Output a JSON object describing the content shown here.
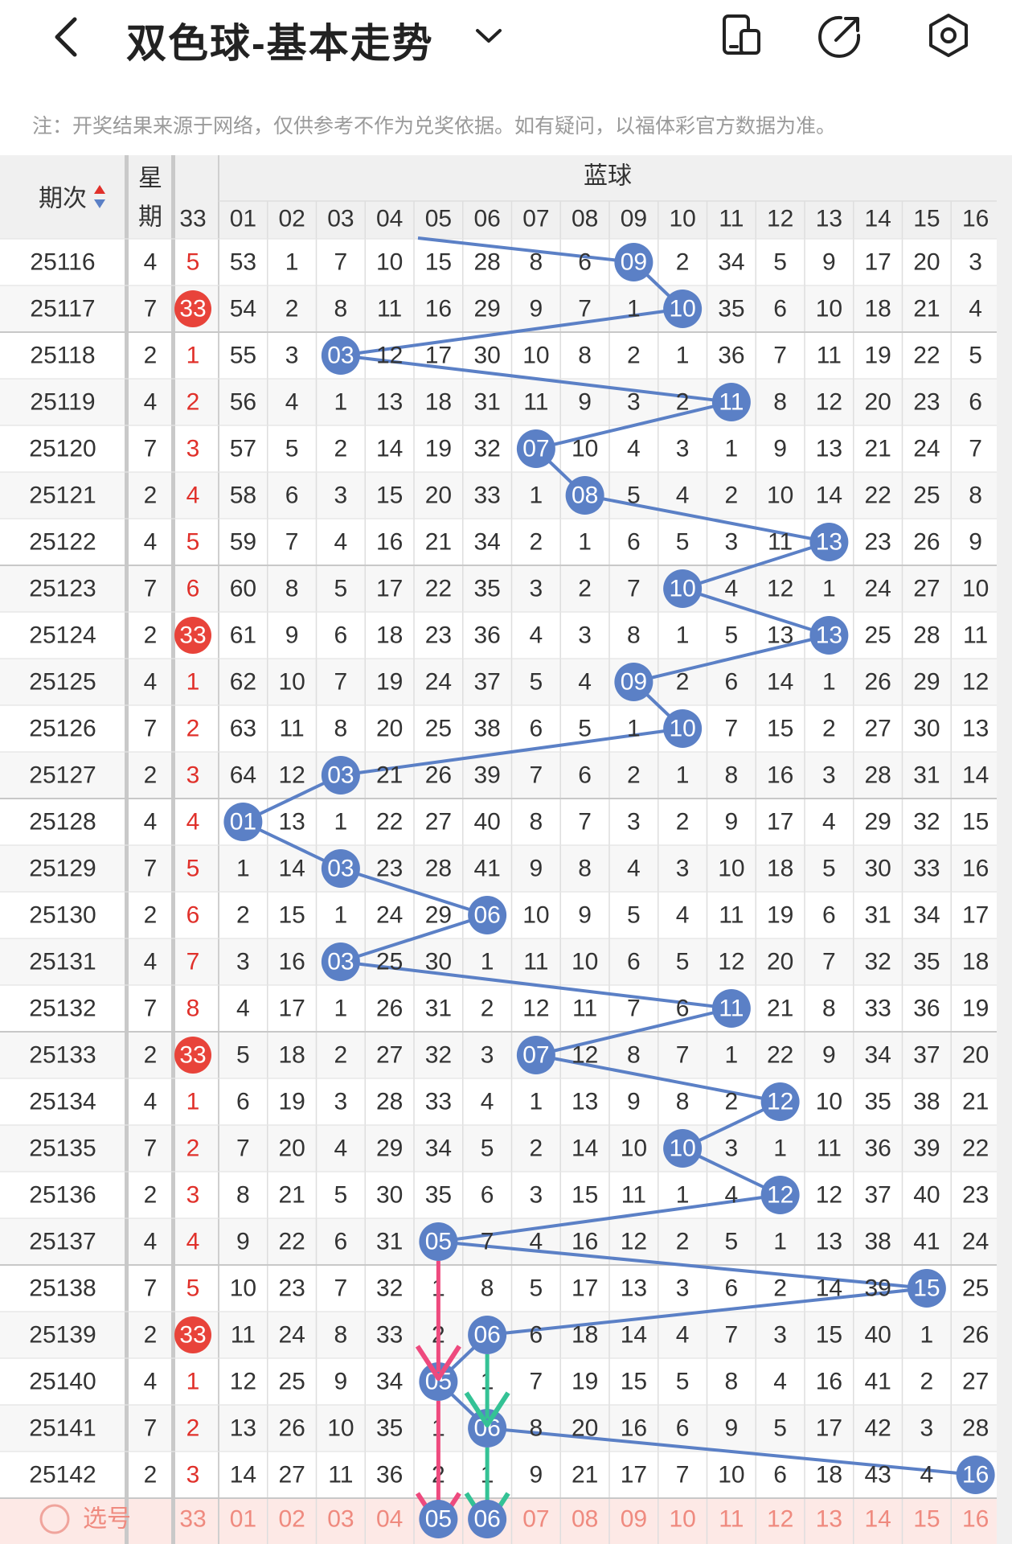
{
  "header": {
    "title": "双色球-基本走势",
    "back_icon": "back-arrow-icon",
    "dropdown_icon": "chevron-down-icon",
    "actions": [
      "device-toggle-icon",
      "share-icon",
      "settings-icon"
    ]
  },
  "note": "注：开奖结果来源于网络，仅供参考不作为兑奖依据。如有疑问，以福体彩官方数据为准。",
  "table": {
    "col_issue": "期次",
    "col_week": "星期",
    "col_red_last": "33",
    "blue_title": "蓝球",
    "blue_headers": [
      "01",
      "02",
      "03",
      "04",
      "05",
      "06",
      "07",
      "08",
      "09",
      "10",
      "11",
      "12",
      "13",
      "14",
      "15",
      "16"
    ],
    "rows": [
      {
        "issue": "25116",
        "week": "4",
        "red": "5",
        "red_hit": false,
        "blue": "09",
        "miss": [
          "53",
          "1",
          "7",
          "10",
          "15",
          "28",
          "8",
          "6",
          "",
          "2",
          "34",
          "5",
          "9",
          "17",
          "20",
          "3"
        ]
      },
      {
        "issue": "25117",
        "week": "7",
        "red": "33",
        "red_hit": true,
        "blue": "10",
        "miss": [
          "54",
          "2",
          "8",
          "11",
          "16",
          "29",
          "9",
          "7",
          "1",
          "",
          "35",
          "6",
          "10",
          "18",
          "21",
          "4"
        ]
      },
      {
        "issue": "25118",
        "week": "2",
        "red": "1",
        "red_hit": false,
        "blue": "03",
        "miss": [
          "55",
          "3",
          "",
          "12",
          "17",
          "30",
          "10",
          "8",
          "2",
          "1",
          "36",
          "7",
          "11",
          "19",
          "22",
          "5"
        ]
      },
      {
        "issue": "25119",
        "week": "4",
        "red": "2",
        "red_hit": false,
        "blue": "11",
        "miss": [
          "56",
          "4",
          "1",
          "13",
          "18",
          "31",
          "11",
          "9",
          "3",
          "2",
          "",
          "8",
          "12",
          "20",
          "23",
          "6"
        ]
      },
      {
        "issue": "25120",
        "week": "7",
        "red": "3",
        "red_hit": false,
        "blue": "07",
        "miss": [
          "57",
          "5",
          "2",
          "14",
          "19",
          "32",
          "",
          "10",
          "4",
          "3",
          "1",
          "9",
          "13",
          "21",
          "24",
          "7"
        ]
      },
      {
        "issue": "25121",
        "week": "2",
        "red": "4",
        "red_hit": false,
        "blue": "08",
        "miss": [
          "58",
          "6",
          "3",
          "15",
          "20",
          "33",
          "1",
          "",
          "5",
          "4",
          "2",
          "10",
          "14",
          "22",
          "25",
          "8"
        ]
      },
      {
        "issue": "25122",
        "week": "4",
        "red": "5",
        "red_hit": false,
        "blue": "13",
        "miss": [
          "59",
          "7",
          "4",
          "16",
          "21",
          "34",
          "2",
          "1",
          "6",
          "5",
          "3",
          "11",
          "",
          "23",
          "26",
          "9"
        ]
      },
      {
        "issue": "25123",
        "week": "7",
        "red": "6",
        "red_hit": false,
        "blue": "10",
        "miss": [
          "60",
          "8",
          "5",
          "17",
          "22",
          "35",
          "3",
          "2",
          "7",
          "",
          "4",
          "12",
          "1",
          "24",
          "27",
          "10"
        ]
      },
      {
        "issue": "25124",
        "week": "2",
        "red": "33",
        "red_hit": true,
        "blue": "13",
        "miss": [
          "61",
          "9",
          "6",
          "18",
          "23",
          "36",
          "4",
          "3",
          "8",
          "1",
          "5",
          "13",
          "",
          "25",
          "28",
          "11"
        ]
      },
      {
        "issue": "25125",
        "week": "4",
        "red": "1",
        "red_hit": false,
        "blue": "09",
        "miss": [
          "62",
          "10",
          "7",
          "19",
          "24",
          "37",
          "5",
          "4",
          "",
          "2",
          "6",
          "14",
          "1",
          "26",
          "29",
          "12"
        ]
      },
      {
        "issue": "25126",
        "week": "7",
        "red": "2",
        "red_hit": false,
        "blue": "10",
        "miss": [
          "63",
          "11",
          "8",
          "20",
          "25",
          "38",
          "6",
          "5",
          "1",
          "",
          "7",
          "15",
          "2",
          "27",
          "30",
          "13"
        ]
      },
      {
        "issue": "25127",
        "week": "2",
        "red": "3",
        "red_hit": false,
        "blue": "03",
        "miss": [
          "64",
          "12",
          "",
          "21",
          "26",
          "39",
          "7",
          "6",
          "2",
          "1",
          "8",
          "16",
          "3",
          "28",
          "31",
          "14"
        ]
      },
      {
        "issue": "25128",
        "week": "4",
        "red": "4",
        "red_hit": false,
        "blue": "01",
        "miss": [
          "",
          "13",
          "1",
          "22",
          "27",
          "40",
          "8",
          "7",
          "3",
          "2",
          "9",
          "17",
          "4",
          "29",
          "32",
          "15"
        ]
      },
      {
        "issue": "25129",
        "week": "7",
        "red": "5",
        "red_hit": false,
        "blue": "03",
        "miss": [
          "1",
          "14",
          "",
          "23",
          "28",
          "41",
          "9",
          "8",
          "4",
          "3",
          "10",
          "18",
          "5",
          "30",
          "33",
          "16"
        ]
      },
      {
        "issue": "25130",
        "week": "2",
        "red": "6",
        "red_hit": false,
        "blue": "06",
        "miss": [
          "2",
          "15",
          "1",
          "24",
          "29",
          "",
          "10",
          "9",
          "5",
          "4",
          "11",
          "19",
          "6",
          "31",
          "34",
          "17"
        ]
      },
      {
        "issue": "25131",
        "week": "4",
        "red": "7",
        "red_hit": false,
        "blue": "03",
        "miss": [
          "3",
          "16",
          "",
          "25",
          "30",
          "1",
          "11",
          "10",
          "6",
          "5",
          "12",
          "20",
          "7",
          "32",
          "35",
          "18"
        ]
      },
      {
        "issue": "25132",
        "week": "7",
        "red": "8",
        "red_hit": false,
        "blue": "11",
        "miss": [
          "4",
          "17",
          "1",
          "26",
          "31",
          "2",
          "12",
          "11",
          "7",
          "6",
          "",
          "21",
          "8",
          "33",
          "36",
          "19"
        ]
      },
      {
        "issue": "25133",
        "week": "2",
        "red": "33",
        "red_hit": true,
        "blue": "07",
        "miss": [
          "5",
          "18",
          "2",
          "27",
          "32",
          "3",
          "",
          "12",
          "8",
          "7",
          "1",
          "22",
          "9",
          "34",
          "37",
          "20"
        ]
      },
      {
        "issue": "25134",
        "week": "4",
        "red": "1",
        "red_hit": false,
        "blue": "12",
        "miss": [
          "6",
          "19",
          "3",
          "28",
          "33",
          "4",
          "1",
          "13",
          "9",
          "8",
          "2",
          "",
          "10",
          "35",
          "38",
          "21"
        ]
      },
      {
        "issue": "25135",
        "week": "7",
        "red": "2",
        "red_hit": false,
        "blue": "10",
        "miss": [
          "7",
          "20",
          "4",
          "29",
          "34",
          "5",
          "2",
          "14",
          "10",
          "",
          "3",
          "1",
          "11",
          "36",
          "39",
          "22"
        ]
      },
      {
        "issue": "25136",
        "week": "2",
        "red": "3",
        "red_hit": false,
        "blue": "12",
        "miss": [
          "8",
          "21",
          "5",
          "30",
          "35",
          "6",
          "3",
          "15",
          "11",
          "1",
          "4",
          "",
          "12",
          "37",
          "40",
          "23"
        ]
      },
      {
        "issue": "25137",
        "week": "4",
        "red": "4",
        "red_hit": false,
        "blue": "05",
        "miss": [
          "9",
          "22",
          "6",
          "31",
          "",
          "7",
          "4",
          "16",
          "12",
          "2",
          "5",
          "1",
          "13",
          "38",
          "41",
          "24"
        ]
      },
      {
        "issue": "25138",
        "week": "7",
        "red": "5",
        "red_hit": false,
        "blue": "15",
        "miss": [
          "10",
          "23",
          "7",
          "32",
          "1",
          "8",
          "5",
          "17",
          "13",
          "3",
          "6",
          "2",
          "14",
          "39",
          "",
          "25"
        ]
      },
      {
        "issue": "25139",
        "week": "2",
        "red": "33",
        "red_hit": true,
        "blue": "06",
        "miss": [
          "11",
          "24",
          "8",
          "33",
          "2",
          "",
          "6",
          "18",
          "14",
          "4",
          "7",
          "3",
          "15",
          "40",
          "1",
          "26"
        ]
      },
      {
        "issue": "25140",
        "week": "4",
        "red": "1",
        "red_hit": false,
        "blue": "05",
        "miss": [
          "12",
          "25",
          "9",
          "34",
          "",
          "1",
          "7",
          "19",
          "15",
          "5",
          "8",
          "4",
          "16",
          "41",
          "2",
          "27"
        ]
      },
      {
        "issue": "25141",
        "week": "7",
        "red": "2",
        "red_hit": false,
        "blue": "06",
        "miss": [
          "13",
          "26",
          "10",
          "35",
          "1",
          "",
          "8",
          "20",
          "16",
          "6",
          "9",
          "5",
          "17",
          "42",
          "3",
          "28"
        ]
      },
      {
        "issue": "25142",
        "week": "2",
        "red": "3",
        "red_hit": false,
        "blue": "16",
        "miss": [
          "14",
          "27",
          "11",
          "36",
          "2",
          "1",
          "9",
          "21",
          "17",
          "7",
          "10",
          "6",
          "18",
          "43",
          "4",
          ""
        ]
      }
    ],
    "footer": {
      "select_label": "选号",
      "red_label": "33",
      "selected": [
        "05",
        "06"
      ]
    }
  },
  "colors": {
    "ball_blue": "#5b80c6",
    "line_blue": "#5b80c6",
    "red_ball": "#e8433a",
    "red_text": "#e0302a",
    "pink_arrow": "#ee4a7e",
    "green_arrow": "#34c295",
    "header_bg": "#f0f0f0",
    "footer_bg": "#fde9e6"
  }
}
